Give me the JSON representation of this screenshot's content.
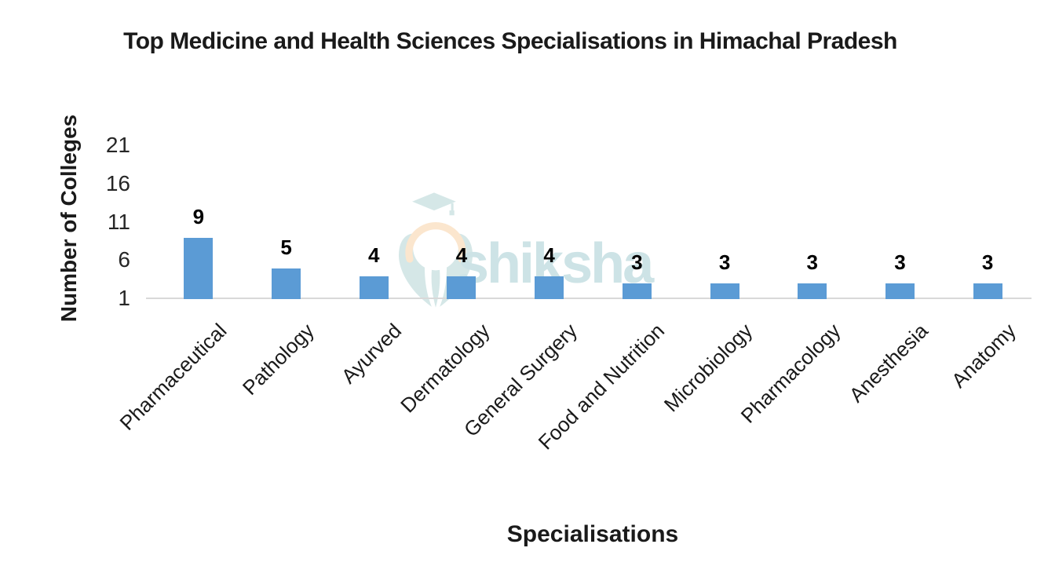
{
  "title": "Top Medicine and Health Sciences Specialisations in Himachal Pradesh",
  "watermark": {
    "text": "shiksha",
    "icon": "shiksha-graduate-logo",
    "text_color": "#c9e1e4",
    "icon_color": "#d2e6e6",
    "arc_color": "#fbe4ca"
  },
  "chart_data": {
    "type": "bar",
    "title": "Top Medicine and Health Sciences Specialisations in Himachal Pradesh",
    "categories": [
      "Pharmaceutical",
      "Pathology",
      "Ayurved",
      "Dermatology",
      "General Surgery",
      "Food and Nutrition",
      "Microbiology",
      "Pharmacology",
      "Anesthesia",
      "Anatomy"
    ],
    "values": [
      9,
      5,
      4,
      4,
      4,
      3,
      3,
      3,
      3,
      3
    ],
    "xlabel": "Specialisations",
    "ylabel": "Number of Colleges",
    "yticks": [
      21,
      16,
      11,
      6,
      1
    ],
    "ylim": [
      1,
      21
    ],
    "grid": false,
    "legend": false,
    "data_labels": true,
    "bar_color": "#5b9bd5",
    "axis_line_color": "#d9d9d9"
  }
}
